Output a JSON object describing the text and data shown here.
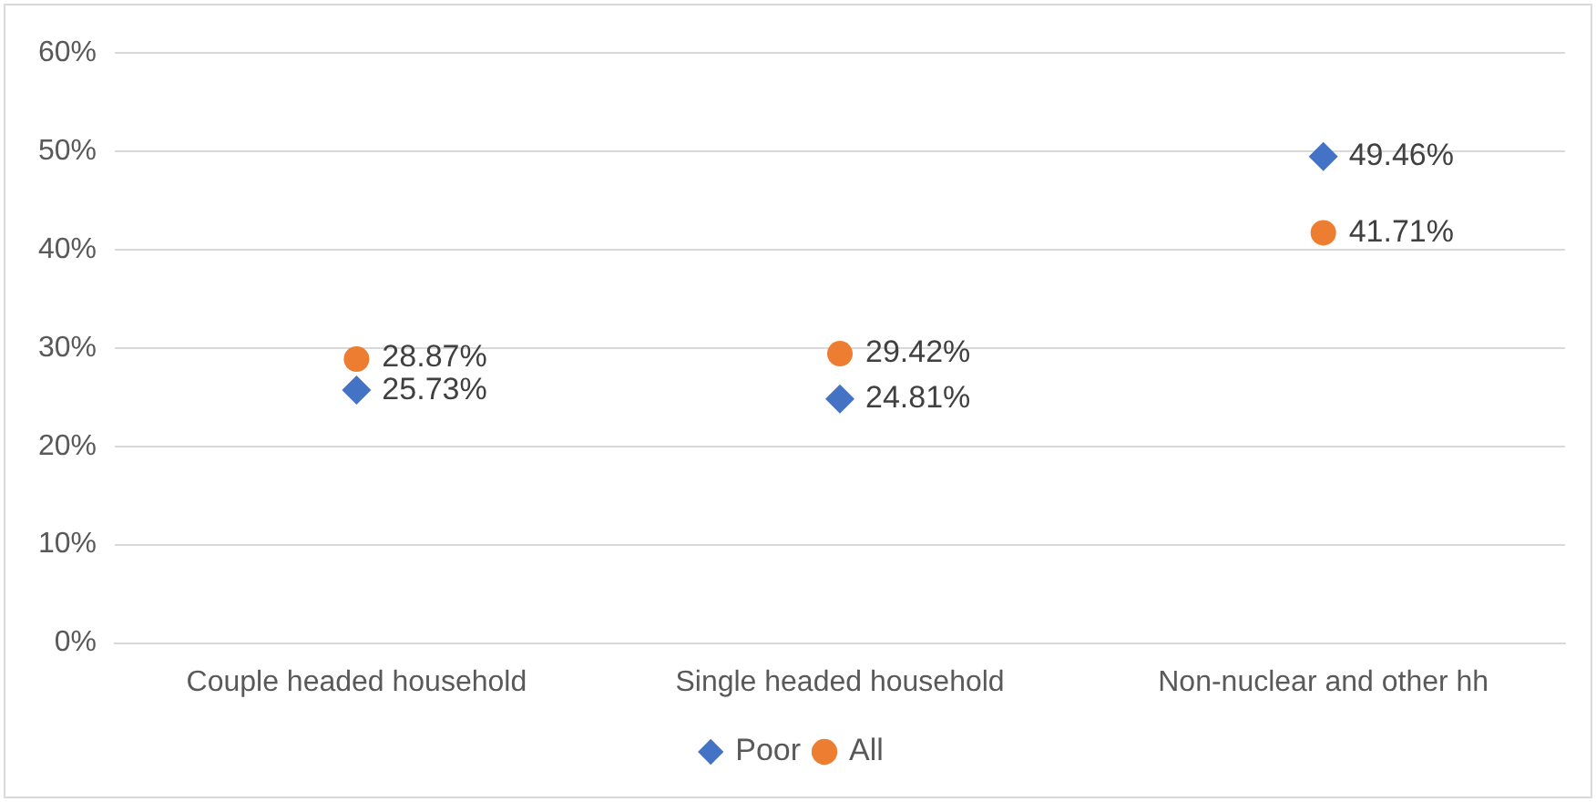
{
  "chart_data": {
    "type": "scatter",
    "categories": [
      "Couple headed household",
      "Single headed household",
      "Non-nuclear and other hh"
    ],
    "series": [
      {
        "name": "Poor",
        "color": "#4472c4",
        "marker": "diamond",
        "values": [
          25.73,
          24.81,
          49.46
        ],
        "value_labels": [
          "25.73%",
          "24.81%",
          "49.46%"
        ]
      },
      {
        "name": "All",
        "color": "#ed7d31",
        "marker": "circle",
        "values": [
          28.87,
          29.42,
          41.71
        ],
        "value_labels": [
          "28.87%",
          "29.42%",
          "41.71%"
        ]
      }
    ],
    "ylim": [
      0,
      60
    ],
    "yticks": [
      {
        "value": 0,
        "label": "0%"
      },
      {
        "value": 10,
        "label": "10%"
      },
      {
        "value": 20,
        "label": "20%"
      },
      {
        "value": 30,
        "label": "30%"
      },
      {
        "value": 40,
        "label": "40%"
      },
      {
        "value": 50,
        "label": "50%"
      },
      {
        "value": 60,
        "label": "60%"
      }
    ],
    "grid": "y",
    "legend": "bottom"
  }
}
